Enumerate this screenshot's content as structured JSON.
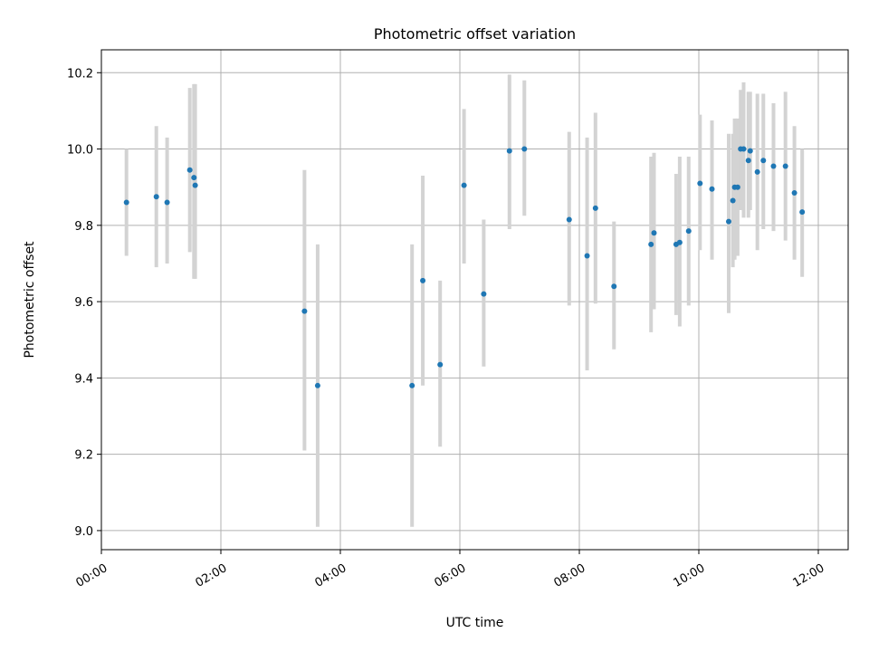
{
  "chart_data": {
    "type": "scatter",
    "title": "Photometric offset variation",
    "xlabel": "UTC time",
    "ylabel": "Photometric offset",
    "x_unit": "hours",
    "xlim": [
      0,
      12.5
    ],
    "ylim": [
      8.95,
      10.26
    ],
    "x_ticks": [
      {
        "value": 0,
        "label": "00:00"
      },
      {
        "value": 2,
        "label": "02:00"
      },
      {
        "value": 4,
        "label": "04:00"
      },
      {
        "value": 6,
        "label": "06:00"
      },
      {
        "value": 8,
        "label": "08:00"
      },
      {
        "value": 10,
        "label": "10:00"
      },
      {
        "value": 12,
        "label": "12:00"
      }
    ],
    "y_ticks": [
      {
        "value": 9.0,
        "label": "9.0"
      },
      {
        "value": 9.2,
        "label": "9.2"
      },
      {
        "value": 9.4,
        "label": "9.4"
      },
      {
        "value": 9.6,
        "label": "9.6"
      },
      {
        "value": 9.8,
        "label": "9.8"
      },
      {
        "value": 10.0,
        "label": "10.0"
      },
      {
        "value": 10.2,
        "label": "10.2"
      }
    ],
    "grid": true,
    "colors": {
      "point": "#1f77b4",
      "errorbar": "#d3d3d3"
    },
    "points": [
      {
        "x": 0.42,
        "y": 9.86,
        "lo": 9.72,
        "hi": 10.0
      },
      {
        "x": 0.92,
        "y": 9.875,
        "lo": 9.69,
        "hi": 10.06
      },
      {
        "x": 1.1,
        "y": 9.86,
        "lo": 9.7,
        "hi": 10.03
      },
      {
        "x": 1.48,
        "y": 9.945,
        "lo": 9.73,
        "hi": 10.16
      },
      {
        "x": 1.55,
        "y": 9.925,
        "lo": 9.66,
        "hi": 10.17
      },
      {
        "x": 1.57,
        "y": 9.905,
        "lo": 9.66,
        "hi": 10.17
      },
      {
        "x": 3.4,
        "y": 9.575,
        "lo": 9.21,
        "hi": 9.945
      },
      {
        "x": 3.62,
        "y": 9.38,
        "lo": 9.01,
        "hi": 9.75
      },
      {
        "x": 5.2,
        "y": 9.38,
        "lo": 9.01,
        "hi": 9.75
      },
      {
        "x": 5.38,
        "y": 9.655,
        "lo": 9.38,
        "hi": 9.93
      },
      {
        "x": 5.67,
        "y": 9.435,
        "lo": 9.22,
        "hi": 9.655
      },
      {
        "x": 6.07,
        "y": 9.905,
        "lo": 9.7,
        "hi": 10.105
      },
      {
        "x": 6.4,
        "y": 9.62,
        "lo": 9.43,
        "hi": 9.815
      },
      {
        "x": 6.83,
        "y": 9.995,
        "lo": 9.79,
        "hi": 10.195
      },
      {
        "x": 7.08,
        "y": 10.0,
        "lo": 9.825,
        "hi": 10.18
      },
      {
        "x": 7.83,
        "y": 9.815,
        "lo": 9.59,
        "hi": 10.045
      },
      {
        "x": 8.13,
        "y": 9.72,
        "lo": 9.42,
        "hi": 10.03
      },
      {
        "x": 8.27,
        "y": 9.845,
        "lo": 9.595,
        "hi": 10.095
      },
      {
        "x": 8.58,
        "y": 9.64,
        "lo": 9.475,
        "hi": 9.81
      },
      {
        "x": 9.2,
        "y": 9.75,
        "lo": 9.52,
        "hi": 9.98
      },
      {
        "x": 9.25,
        "y": 9.78,
        "lo": 9.58,
        "hi": 9.99
      },
      {
        "x": 9.62,
        "y": 9.75,
        "lo": 9.565,
        "hi": 9.935
      },
      {
        "x": 9.68,
        "y": 9.755,
        "lo": 9.535,
        "hi": 9.98
      },
      {
        "x": 9.83,
        "y": 9.785,
        "lo": 9.59,
        "hi": 9.98
      },
      {
        "x": 10.02,
        "y": 9.91,
        "lo": 9.735,
        "hi": 10.09
      },
      {
        "x": 10.22,
        "y": 9.895,
        "lo": 9.71,
        "hi": 10.075
      },
      {
        "x": 10.5,
        "y": 9.81,
        "lo": 9.57,
        "hi": 10.04
      },
      {
        "x": 10.57,
        "y": 9.865,
        "lo": 9.69,
        "hi": 10.04
      },
      {
        "x": 10.6,
        "y": 9.9,
        "lo": 9.71,
        "hi": 10.08
      },
      {
        "x": 10.65,
        "y": 9.9,
        "lo": 9.72,
        "hi": 10.08
      },
      {
        "x": 10.7,
        "y": 10.0,
        "lo": 9.84,
        "hi": 10.155
      },
      {
        "x": 10.75,
        "y": 10.0,
        "lo": 9.82,
        "hi": 10.175
      },
      {
        "x": 10.83,
        "y": 9.97,
        "lo": 9.82,
        "hi": 10.15
      },
      {
        "x": 10.86,
        "y": 9.995,
        "lo": 9.84,
        "hi": 10.15
      },
      {
        "x": 10.98,
        "y": 9.94,
        "lo": 9.735,
        "hi": 10.145
      },
      {
        "x": 11.08,
        "y": 9.97,
        "lo": 9.79,
        "hi": 10.145
      },
      {
        "x": 11.25,
        "y": 9.955,
        "lo": 9.785,
        "hi": 10.12
      },
      {
        "x": 11.45,
        "y": 9.955,
        "lo": 9.76,
        "hi": 10.15
      },
      {
        "x": 11.6,
        "y": 9.885,
        "lo": 9.71,
        "hi": 10.06
      },
      {
        "x": 11.73,
        "y": 9.835,
        "lo": 9.665,
        "hi": 10.0
      }
    ]
  }
}
